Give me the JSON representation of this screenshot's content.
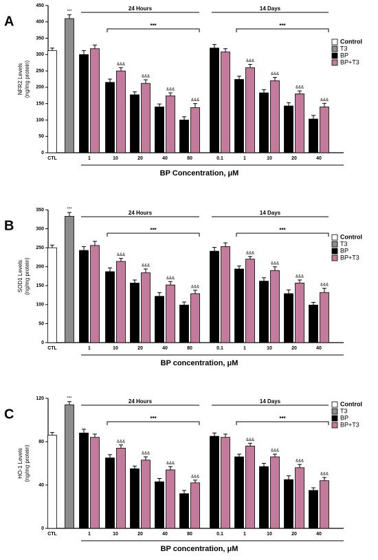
{
  "chart_data": [
    {
      "type": "bar",
      "panel_label": "A",
      "ylabel": [
        "NFR2 Levels",
        "(ng/mg protein)"
      ],
      "xlabel": "BP Concentration, μM",
      "categories": [
        "CTL",
        null,
        "1",
        "10",
        "20",
        "40",
        "80",
        "0.1",
        "1",
        "10",
        "20",
        "40"
      ],
      "groups": [
        {
          "label": "24 Hours",
          "significance": "***"
        },
        {
          "label": "14 Days",
          "significance": "***"
        }
      ],
      "ylim": [
        0,
        450
      ],
      "yticks": [
        0,
        50,
        100,
        150,
        200,
        250,
        300,
        350,
        400,
        450
      ],
      "series": [
        {
          "name": "Control",
          "color": "#ffffff",
          "values": [
            312,
            null,
            null,
            null,
            null,
            null,
            null,
            null,
            null,
            null,
            null,
            null
          ],
          "errors": [
            8,
            null,
            null,
            null,
            null,
            null,
            null,
            null,
            null,
            null,
            null,
            null
          ]
        },
        {
          "name": "T3",
          "color": "#8c8c8c",
          "values": [
            null,
            410,
            null,
            null,
            null,
            null,
            null,
            null,
            null,
            null,
            null,
            null
          ],
          "errors": [
            null,
            12,
            null,
            null,
            null,
            null,
            null,
            null,
            null,
            null,
            null,
            null
          ],
          "markers": [
            null,
            "***",
            null,
            null,
            null,
            null,
            null,
            null,
            null,
            null,
            null,
            null
          ]
        },
        {
          "name": "BP",
          "color": "#000000",
          "values": [
            null,
            null,
            300,
            215,
            177,
            140,
            100,
            320,
            224,
            183,
            143,
            103
          ],
          "errors": [
            null,
            null,
            12,
            10,
            9,
            9,
            10,
            11,
            10,
            10,
            10,
            11
          ]
        },
        {
          "name": "BP+T3",
          "color": "#c27b9a",
          "values": [
            null,
            null,
            318,
            250,
            212,
            174,
            138,
            308,
            260,
            220,
            180,
            140
          ],
          "errors": [
            null,
            null,
            11,
            10,
            11,
            9,
            12,
            10,
            10,
            10,
            9,
            11
          ],
          "markers": [
            null,
            null,
            null,
            "&&&",
            "&&&",
            "&&&",
            "&&&",
            null,
            "&&&",
            "&&&",
            "&&&",
            "&&&"
          ]
        }
      ]
    },
    {
      "type": "bar",
      "panel_label": "B",
      "ylabel": [
        "SOD1 Levels",
        "(ng/mg protein)"
      ],
      "xlabel": "BP concentration, μM",
      "categories": [
        "CTL",
        null,
        "1",
        "10",
        "20",
        "40",
        "80",
        "0.1",
        "1",
        "10",
        "20",
        "40"
      ],
      "groups": [
        {
          "label": "24 Hours",
          "significance": "***"
        },
        {
          "label": "14 Days",
          "significance": "***"
        }
      ],
      "ylim": [
        0,
        350
      ],
      "yticks": [
        0,
        50,
        100,
        150,
        200,
        250,
        300,
        350
      ],
      "series": [
        {
          "name": "Control",
          "color": "#ffffff",
          "values": [
            250,
            null,
            null,
            null,
            null,
            null,
            null,
            null,
            null,
            null,
            null,
            null
          ],
          "errors": [
            7,
            null,
            null,
            null,
            null,
            null,
            null,
            null,
            null,
            null,
            null,
            null
          ]
        },
        {
          "name": "T3",
          "color": "#8c8c8c",
          "values": [
            null,
            333,
            null,
            null,
            null,
            null,
            null,
            null,
            null,
            null,
            null,
            null
          ],
          "errors": [
            null,
            10,
            null,
            null,
            null,
            null,
            null,
            null,
            null,
            null,
            null,
            null
          ],
          "markers": [
            null,
            "***",
            null,
            null,
            null,
            null,
            null,
            null,
            null,
            null,
            null,
            null
          ]
        },
        {
          "name": "BP",
          "color": "#000000",
          "values": [
            null,
            null,
            243,
            187,
            157,
            122,
            99,
            241,
            194,
            162,
            129,
            99
          ],
          "errors": [
            null,
            null,
            10,
            10,
            8,
            10,
            8,
            10,
            8,
            9,
            10,
            7
          ]
        },
        {
          "name": "BP+T3",
          "color": "#c27b9a",
          "values": [
            null,
            null,
            256,
            214,
            184,
            152,
            129,
            253,
            220,
            190,
            157,
            132
          ],
          "errors": [
            null,
            null,
            11,
            8,
            10,
            9,
            9,
            10,
            7,
            10,
            8,
            11
          ],
          "markers": [
            null,
            null,
            null,
            "&&&",
            "&&&",
            "&&&",
            "&&&",
            null,
            "&&&",
            "&&&",
            "&&&",
            "&&&"
          ]
        }
      ]
    },
    {
      "type": "bar",
      "panel_label": "C",
      "ylabel": [
        "HO-1 Levels",
        "(ng/mg protein)"
      ],
      "xlabel": "BP concentration, μM",
      "categories": [
        "CTL",
        null,
        "1",
        "10",
        "20",
        "40",
        "80",
        "0.1",
        "1",
        "10",
        "20",
        "40"
      ],
      "groups": [
        {
          "label": "24 Hours",
          "significance": "***"
        },
        {
          "label": "14 Days",
          "significance": "***"
        }
      ],
      "ylim": [
        0,
        120
      ],
      "yticks": [
        0,
        40,
        80,
        120
      ],
      "series": [
        {
          "name": "Control",
          "color": "#ffffff",
          "values": [
            86,
            null,
            null,
            null,
            null,
            null,
            null,
            null,
            null,
            null,
            null,
            null
          ],
          "errors": [
            2.5,
            null,
            null,
            null,
            null,
            null,
            null,
            null,
            null,
            null,
            null,
            null
          ]
        },
        {
          "name": "T3",
          "color": "#8c8c8c",
          "values": [
            null,
            114,
            null,
            null,
            null,
            null,
            null,
            null,
            null,
            null,
            null,
            null
          ],
          "errors": [
            null,
            3,
            null,
            null,
            null,
            null,
            null,
            null,
            null,
            null,
            null,
            null
          ],
          "markers": [
            null,
            "***",
            null,
            null,
            null,
            null,
            null,
            null,
            null,
            null,
            null,
            null
          ]
        },
        {
          "name": "BP",
          "color": "#000000",
          "values": [
            null,
            null,
            88,
            65,
            55,
            43,
            32,
            85,
            66,
            57,
            45,
            35
          ],
          "errors": [
            null,
            null,
            3.5,
            3,
            2.5,
            3,
            3,
            3,
            2.5,
            3,
            3.5,
            2.5
          ]
        },
        {
          "name": "BP+T3",
          "color": "#c27b9a",
          "values": [
            null,
            null,
            84,
            74,
            63,
            54,
            42,
            84,
            76,
            66,
            56,
            44
          ],
          "errors": [
            null,
            null,
            3,
            3,
            3,
            3,
            2.5,
            3,
            2.5,
            2.5,
            3,
            3
          ],
          "markers": [
            null,
            null,
            null,
            "&&&",
            "&&&",
            "&&&",
            "&&&",
            null,
            "&&&",
            "&&&",
            "&&&",
            "&&&"
          ]
        }
      ]
    }
  ]
}
